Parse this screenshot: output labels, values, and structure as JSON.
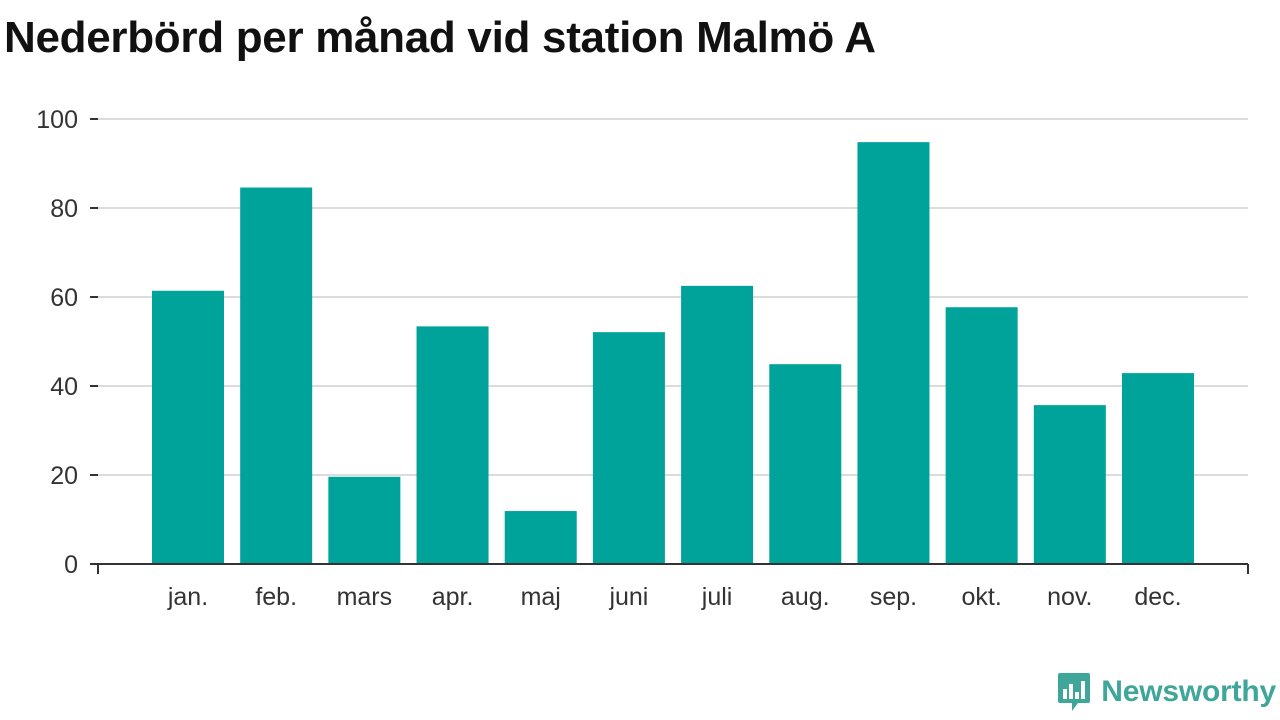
{
  "chart_data": {
    "type": "bar",
    "title": "Nederbörd per månad vid station Malmö A",
    "xlabel": "",
    "ylabel": "",
    "categories": [
      "jan.",
      "feb.",
      "mars",
      "apr.",
      "maj",
      "juni",
      "juli",
      "aug.",
      "sep.",
      "okt.",
      "nov.",
      "dec."
    ],
    "values": [
      61.4,
      84.6,
      19.6,
      53.4,
      11.9,
      52.1,
      62.5,
      44.9,
      94.8,
      57.7,
      35.7,
      42.9
    ],
    "ylim": [
      0,
      100
    ],
    "yticks": [
      0,
      20,
      40,
      60,
      80,
      100
    ],
    "grid": true,
    "legend": "none",
    "bar_color": "#00a39a"
  },
  "brand": {
    "name": "Newsworthy",
    "icon": "newsworthy-logo-icon",
    "color": "#3fa69a"
  }
}
